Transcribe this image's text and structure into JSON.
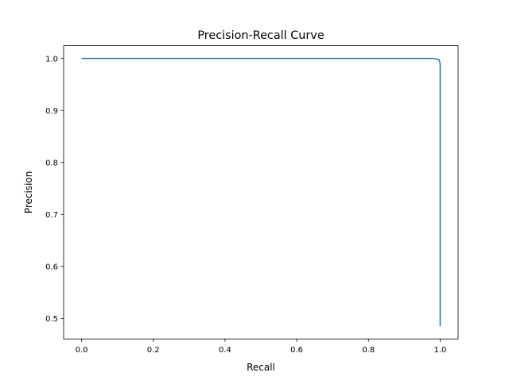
{
  "chart_data": {
    "type": "line",
    "title": "Precision-Recall Curve",
    "xlabel": "Recall",
    "ylabel": "Precision",
    "xlim": [
      -0.05,
      1.05
    ],
    "ylim": [
      0.4605,
      1.0245
    ],
    "xticks": [
      0.0,
      0.2,
      0.4,
      0.6,
      0.8,
      1.0
    ],
    "xtick_labels": [
      "0.0",
      "0.2",
      "0.4",
      "0.6",
      "0.8",
      "1.0"
    ],
    "yticks": [
      0.5,
      0.6,
      0.7,
      0.8,
      0.9,
      1.0
    ],
    "ytick_labels": [
      "0.5",
      "0.6",
      "0.7",
      "0.8",
      "0.9",
      "1.0"
    ],
    "grid": false,
    "series": [
      {
        "color": "#1f77b4",
        "x": [
          0.0,
          0.98,
          0.99,
          0.997,
          1.0,
          1.0
        ],
        "y": [
          1.0,
          1.0,
          0.999,
          0.997,
          0.99,
          0.485
        ]
      }
    ]
  }
}
